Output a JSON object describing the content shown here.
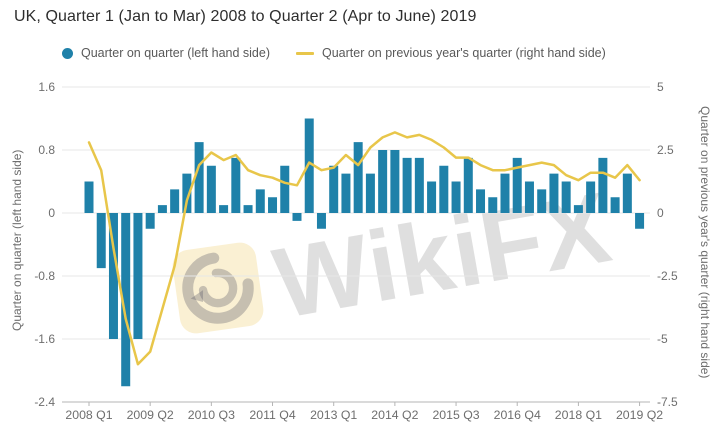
{
  "title": "UK, Quarter 1 (Jan to Mar) 2008 to Quarter 2 (Apr to June) 2019",
  "legend": {
    "bar_label": "Quarter on quarter (left hand side)",
    "line_label": "Quarter on previous year's quarter (right hand side)"
  },
  "watermark": {
    "text": "WikiFX",
    "logo": "wikifx-eagle-logo"
  },
  "colors": {
    "bar": "#1f81a9",
    "line": "#e8c64a",
    "grid": "#e7e7e7",
    "axis_line": "#b5b5b5",
    "tick_text": "#6e6e6e",
    "title_text": "#2e2e2e",
    "legend_text": "#595959"
  },
  "chart_data": {
    "type": "bar",
    "subtype": "bar+line dual axis",
    "grid": true,
    "legend_position": "top",
    "categories": [
      "2008 Q1",
      "2008 Q2",
      "2008 Q3",
      "2008 Q4",
      "2009 Q1",
      "2009 Q2",
      "2009 Q3",
      "2009 Q4",
      "2010 Q1",
      "2010 Q2",
      "2010 Q3",
      "2010 Q4",
      "2011 Q1",
      "2011 Q2",
      "2011 Q3",
      "2011 Q4",
      "2012 Q1",
      "2012 Q2",
      "2012 Q3",
      "2012 Q4",
      "2013 Q1",
      "2013 Q2",
      "2013 Q3",
      "2013 Q4",
      "2014 Q1",
      "2014 Q2",
      "2014 Q3",
      "2014 Q4",
      "2015 Q1",
      "2015 Q2",
      "2015 Q3",
      "2015 Q4",
      "2016 Q1",
      "2016 Q2",
      "2016 Q3",
      "2016 Q4",
      "2017 Q1",
      "2017 Q2",
      "2017 Q3",
      "2017 Q4",
      "2018 Q1",
      "2018 Q2",
      "2018 Q3",
      "2018 Q4",
      "2019 Q1",
      "2019 Q2"
    ],
    "series": [
      {
        "name": "Quarter on quarter (left hand side)",
        "type": "bar",
        "axis": "left",
        "values": [
          0.4,
          -0.7,
          -1.6,
          -2.2,
          -1.6,
          -0.2,
          0.1,
          0.3,
          0.5,
          0.9,
          0.6,
          0.1,
          0.7,
          0.1,
          0.3,
          0.2,
          0.6,
          -0.1,
          1.2,
          -0.2,
          0.6,
          0.5,
          0.9,
          0.5,
          0.8,
          0.8,
          0.7,
          0.7,
          0.4,
          0.6,
          0.4,
          0.7,
          0.3,
          0.2,
          0.5,
          0.7,
          0.4,
          0.3,
          0.5,
          0.4,
          0.1,
          0.4,
          0.7,
          0.2,
          0.5,
          -0.2
        ]
      },
      {
        "name": "Quarter on previous year's quarter (right hand side)",
        "type": "line",
        "axis": "right",
        "values": [
          2.8,
          1.7,
          -1.4,
          -4.2,
          -6.0,
          -5.5,
          -3.8,
          -2.1,
          0.5,
          1.9,
          2.4,
          2.1,
          2.3,
          1.7,
          1.5,
          1.4,
          1.2,
          1.1,
          2.0,
          1.7,
          1.8,
          2.3,
          1.9,
          2.6,
          3.0,
          3.2,
          3.0,
          3.1,
          2.9,
          2.6,
          2.2,
          2.2,
          1.9,
          1.7,
          1.7,
          1.8,
          1.9,
          2.0,
          1.9,
          1.5,
          1.3,
          1.6,
          1.6,
          1.4,
          1.9,
          1.3
        ]
      }
    ],
    "left_axis": {
      "title": "Quarter on quarter (left hand side)",
      "ticks": [
        1.6,
        0.8,
        0,
        -0.8,
        -1.6,
        -2.4
      ],
      "range": [
        -2.4,
        1.6
      ]
    },
    "right_axis": {
      "title": "Quarter on previous year's quarter (right hand side)",
      "ticks": [
        5,
        2.5,
        0,
        -2.5,
        -5,
        -7.5
      ],
      "range": [
        -7.5,
        5
      ]
    },
    "x_tick_labels": [
      "2008 Q1",
      "2009 Q2",
      "2010 Q3",
      "2011 Q4",
      "2013 Q1",
      "2014 Q2",
      "2015 Q3",
      "2016 Q4",
      "2018 Q1",
      "2019 Q2"
    ],
    "x_tick_every": 5
  }
}
